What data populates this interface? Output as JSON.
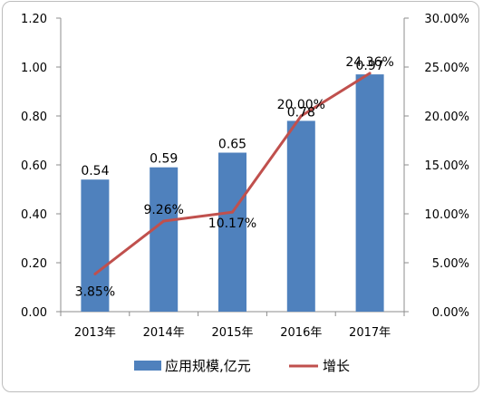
{
  "chart_data": {
    "type": "bar",
    "categories": [
      "2013年",
      "2014年",
      "2015年",
      "2016年",
      "2017年"
    ],
    "series": [
      {
        "name": "应用规模,亿元",
        "type": "bar",
        "axis": "left",
        "color": "#4F81BD",
        "values": [
          0.54,
          0.59,
          0.65,
          0.78,
          0.97
        ],
        "labels": [
          "0.54",
          "0.59",
          "0.65",
          "0.78",
          "0.97"
        ]
      },
      {
        "name": "增长",
        "type": "line",
        "axis": "right",
        "color": "#C0504D",
        "values": [
          3.85,
          9.26,
          10.17,
          20.0,
          24.36
        ],
        "labels": [
          "3.85%",
          "9.26%",
          "10.17%",
          "20.00%",
          "24.36%"
        ]
      }
    ],
    "y_left": {
      "ylim": [
        0,
        1.2
      ],
      "ticks": [
        "0.00",
        "0.20",
        "0.40",
        "0.60",
        "0.80",
        "1.00",
        "1.20"
      ]
    },
    "y_right": {
      "ylim": [
        0,
        30
      ],
      "ticks": [
        "0.00%",
        "5.00%",
        "10.00%",
        "15.00%",
        "20.00%",
        "25.00%",
        "30.00%"
      ]
    },
    "grid": false,
    "legend": "bottom",
    "title": "",
    "xlabel": "",
    "ylabel": ""
  }
}
